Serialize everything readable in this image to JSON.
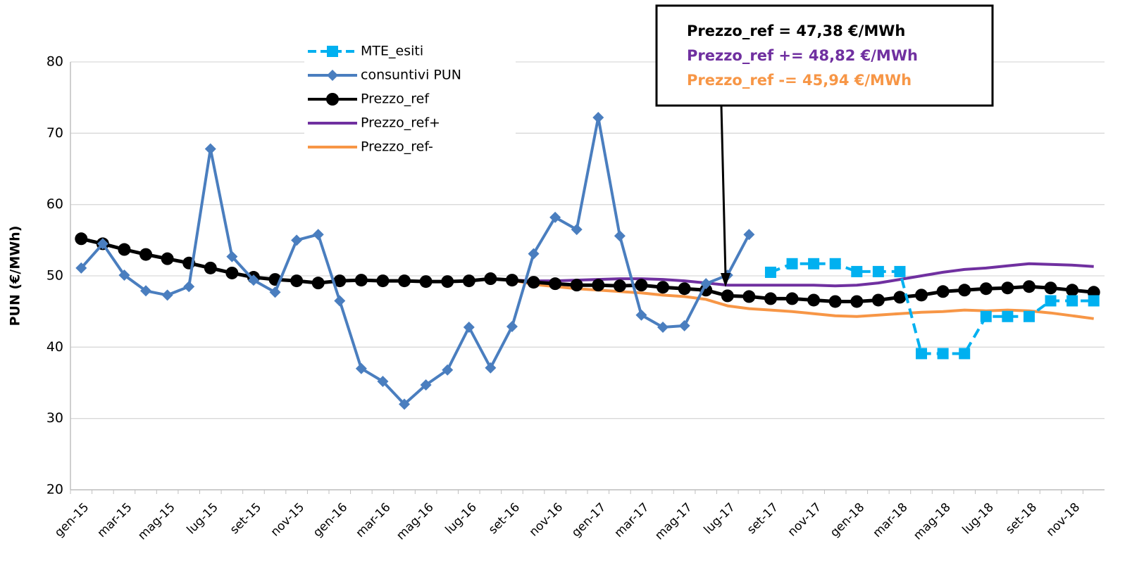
{
  "chart_data": {
    "type": "line",
    "y_label": "PUN (€/MWh)",
    "categories": [
      "gen-15",
      null,
      "mar-15",
      null,
      "mag-15",
      null,
      "lug-15",
      null,
      "set-15",
      null,
      "nov-15",
      null,
      "gen-16",
      null,
      "mar-16",
      null,
      "mag-16",
      null,
      "lug-16",
      null,
      "set-16",
      null,
      "nov-16",
      null,
      "gen-17",
      null,
      "mar-17",
      null,
      "mag-17",
      null,
      "lug-17",
      null,
      "set-17",
      null,
      "nov-17",
      null,
      "gen-18",
      null,
      "mar-18",
      null,
      "mag-18",
      null,
      "lug-18",
      null,
      "set-18",
      null,
      "nov-18",
      null
    ],
    "series": [
      {
        "name": "MTE_esiti",
        "color": "#00b0f0",
        "marker": "square",
        "dashed": true,
        "values": [
          null,
          null,
          null,
          null,
          null,
          null,
          null,
          null,
          null,
          null,
          null,
          null,
          null,
          null,
          null,
          null,
          null,
          null,
          null,
          null,
          null,
          null,
          null,
          null,
          null,
          null,
          null,
          null,
          null,
          null,
          null,
          null,
          50.5,
          51.7,
          51.7,
          51.7,
          50.6,
          50.6,
          50.6,
          39.1,
          39.1,
          39.1,
          44.3,
          44.3,
          44.3,
          46.5,
          46.5,
          46.5
        ]
      },
      {
        "name": "consuntivi PUN",
        "color": "#4a7ebf",
        "marker": "diamond",
        "values": [
          51.1,
          54.5,
          50.1,
          47.9,
          47.3,
          48.5,
          67.8,
          52.7,
          49.4,
          47.7,
          55.0,
          55.8,
          46.5,
          37.0,
          35.2,
          32.0,
          34.7,
          36.8,
          42.8,
          37.1,
          42.9,
          53.1,
          58.2,
          56.5,
          72.2,
          55.6,
          44.5,
          42.8,
          43.0,
          48.9,
          50.1,
          55.8,
          null,
          null,
          null,
          null,
          null,
          null,
          null,
          null,
          null,
          null,
          null,
          null,
          null,
          null,
          null,
          null
        ]
      },
      {
        "name": "Prezzo_ref",
        "color": "#000000",
        "marker": "circle",
        "values": [
          55.2,
          54.5,
          53.7,
          53.0,
          52.4,
          51.8,
          51.1,
          50.4,
          49.8,
          49.5,
          49.3,
          49.0,
          49.3,
          49.4,
          49.3,
          49.3,
          49.2,
          49.2,
          49.3,
          49.6,
          49.4,
          49.1,
          48.9,
          48.7,
          48.7,
          48.6,
          48.7,
          48.4,
          48.2,
          48.0,
          47.2,
          47.1,
          46.8,
          46.8,
          46.6,
          46.4,
          46.4,
          46.6,
          47.0,
          47.3,
          47.8,
          48.0,
          48.2,
          48.3,
          48.5,
          48.3,
          48.0,
          47.7
        ]
      },
      {
        "name": "Prezzo_ref+",
        "color": "#7030a0",
        "values": [
          55.2,
          54.5,
          53.7,
          53.0,
          52.4,
          51.8,
          51.1,
          50.4,
          49.8,
          49.5,
          49.3,
          49.0,
          49.3,
          49.4,
          49.3,
          49.3,
          49.2,
          49.2,
          49.3,
          49.6,
          49.4,
          49.3,
          49.3,
          49.4,
          49.5,
          49.6,
          49.6,
          49.5,
          49.3,
          49.0,
          48.7,
          48.7,
          48.7,
          48.7,
          48.7,
          48.6,
          48.7,
          49.0,
          49.5,
          50.0,
          50.5,
          50.9,
          51.1,
          51.4,
          51.7,
          51.6,
          51.5,
          51.3
        ]
      },
      {
        "name": "Prezzo_ref-",
        "color": "#f79646",
        "values": [
          55.2,
          54.5,
          53.7,
          53.0,
          52.4,
          51.8,
          51.1,
          50.4,
          49.8,
          49.5,
          49.3,
          49.0,
          49.3,
          49.4,
          49.3,
          49.3,
          49.2,
          49.2,
          49.3,
          49.6,
          49.4,
          48.8,
          48.5,
          48.2,
          48.0,
          47.8,
          47.6,
          47.3,
          47.1,
          46.7,
          45.8,
          45.4,
          45.2,
          45.0,
          44.7,
          44.4,
          44.3,
          44.5,
          44.7,
          44.9,
          45.0,
          45.2,
          45.1,
          45.2,
          45.1,
          44.8,
          44.4,
          44.0
        ]
      }
    ],
    "ylim": [
      20,
      80
    ],
    "yticks": [
      20,
      30,
      40,
      50,
      60,
      70,
      80
    ],
    "grid": true,
    "annotations": [
      {
        "text": "Prezzo_ref = 47,38 €/MWh",
        "color": "#000000"
      },
      {
        "text": "Prezzo_ref += 48,82 €/MWh",
        "color": "#7030a0"
      },
      {
        "text": "Prezzo_ref -= 45,94 €/MWh",
        "color": "#f79646"
      }
    ]
  }
}
